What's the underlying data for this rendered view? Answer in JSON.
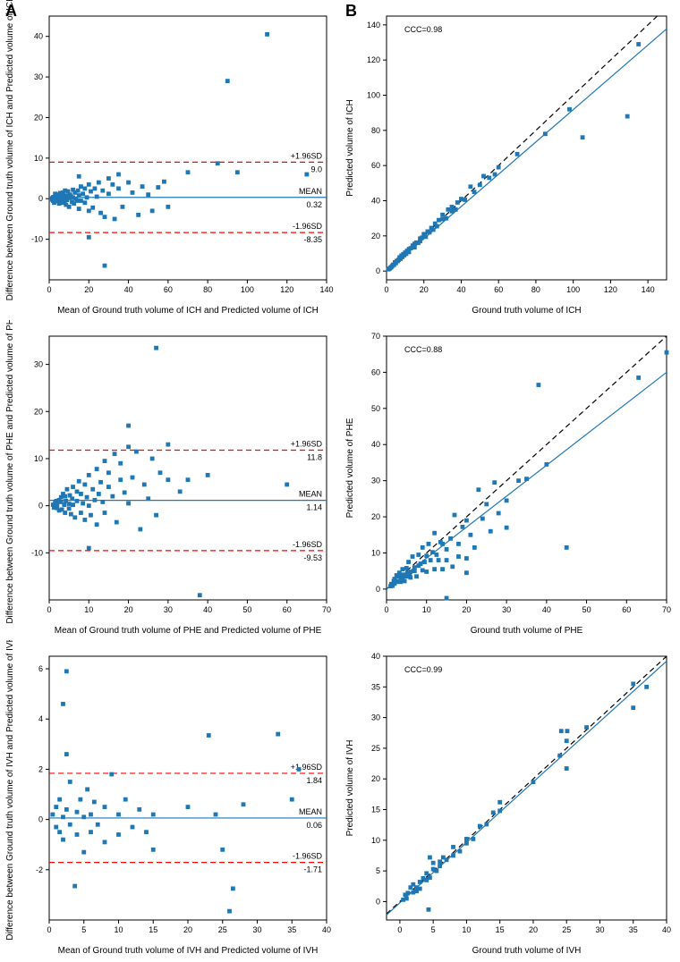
{
  "labels": {
    "A": "A",
    "B": "B"
  },
  "colors": {
    "point": "#1f77b4",
    "mean": "#1f77b4",
    "sd": "#ff0000",
    "identity": "#000000",
    "fit": "#1f77b4",
    "bg": "#ffffff"
  },
  "marker_size": 2.4,
  "ba_ich": {
    "type": "scatter",
    "xlabel": "Mean of Ground truth volume of ICH and Predicted volume of ICH",
    "ylabel": "Difference between Ground truth volume of ICH and Predicted volume of ICH",
    "xlim": [
      0,
      140
    ],
    "xtick_step": 20,
    "ylim": [
      -20,
      45
    ],
    "yticks": [
      -10,
      0,
      10,
      20,
      30,
      40
    ],
    "mean": 0.32,
    "upper_sd": 9.0,
    "lower_sd": -8.35,
    "anno_upper": "+1.96SD",
    "anno_upper_val": "9.0",
    "anno_mean": "MEAN",
    "anno_mean_val": "0.32",
    "anno_lower": "-1.96SD",
    "anno_lower_val": "-8.35",
    "points": [
      [
        1,
        -0.2
      ],
      [
        1.5,
        0.1
      ],
      [
        2,
        0.3
      ],
      [
        2,
        -0.5
      ],
      [
        2.2,
        0.4
      ],
      [
        2.5,
        -1
      ],
      [
        3,
        0.2
      ],
      [
        3,
        1.2
      ],
      [
        3.5,
        -0.6
      ],
      [
        4,
        0.5
      ],
      [
        4,
        1
      ],
      [
        4.2,
        -0.4
      ],
      [
        4.5,
        0.8
      ],
      [
        5,
        0
      ],
      [
        5,
        -1.2
      ],
      [
        5.2,
        0.9
      ],
      [
        5.5,
        1.4
      ],
      [
        5.8,
        -0.8
      ],
      [
        6,
        0.3
      ],
      [
        6.2,
        0.6
      ],
      [
        6.5,
        -0.2
      ],
      [
        7,
        1.5
      ],
      [
        7,
        -1
      ],
      [
        7.2,
        0.8
      ],
      [
        7.5,
        0.1
      ],
      [
        7.8,
        -0.5
      ],
      [
        8,
        2
      ],
      [
        8,
        0.4
      ],
      [
        8.5,
        -1.5
      ],
      [
        9,
        0.7
      ],
      [
        9,
        -0.3
      ],
      [
        9.5,
        1.8
      ],
      [
        10,
        0.2
      ],
      [
        10,
        -2
      ],
      [
        10.5,
        1
      ],
      [
        11,
        0.5
      ],
      [
        11.5,
        -0.8
      ],
      [
        12,
        2.2
      ],
      [
        12,
        0.3
      ],
      [
        12.5,
        -1.2
      ],
      [
        13,
        1.5
      ],
      [
        13.5,
        0
      ],
      [
        14,
        -0.5
      ],
      [
        14.5,
        2
      ],
      [
        15,
        0.8
      ],
      [
        15,
        -2.5
      ],
      [
        16,
        3
      ],
      [
        16,
        -0.5
      ],
      [
        17,
        1.2
      ],
      [
        18,
        -1
      ],
      [
        18,
        2.5
      ],
      [
        19,
        0.3
      ],
      [
        20,
        3.5
      ],
      [
        20,
        -3
      ],
      [
        21,
        1.8
      ],
      [
        22,
        -2.2
      ],
      [
        23,
        2.5
      ],
      [
        24,
        0.5
      ],
      [
        25,
        4
      ],
      [
        26,
        -3.5
      ],
      [
        27,
        2
      ],
      [
        28,
        -4.5
      ],
      [
        30,
        1.2
      ],
      [
        30,
        5
      ],
      [
        32,
        3.5
      ],
      [
        33,
        -5
      ],
      [
        35,
        2.5
      ],
      [
        35,
        6
      ],
      [
        37,
        -2
      ],
      [
        40,
        4
      ],
      [
        42,
        1.5
      ],
      [
        45,
        -4
      ],
      [
        47,
        3
      ],
      [
        50,
        1
      ],
      [
        52,
        -3
      ],
      [
        55,
        2.8
      ],
      [
        58,
        4.2
      ],
      [
        60,
        -2
      ],
      [
        70,
        6.5
      ],
      [
        85,
        8.7
      ],
      [
        90,
        29
      ],
      [
        95,
        6.5
      ],
      [
        110,
        40.5
      ],
      [
        130,
        6
      ],
      [
        28,
        -16.5
      ],
      [
        20,
        -9.5
      ],
      [
        15,
        5.5
      ]
    ]
  },
  "sc_ich": {
    "type": "scatter",
    "xlabel": "Ground truth volume of ICH",
    "ylabel": "Predicted volume of ICH",
    "xlim": [
      0,
      150
    ],
    "xtick_step": 20,
    "ylim": [
      -5,
      145
    ],
    "ytick_step": 20,
    "yticks": [
      0,
      20,
      40,
      60,
      80,
      100,
      120,
      140
    ],
    "ccc_label": "CCC=0.98",
    "fit_slope": 0.918,
    "fit_intercept": 0,
    "points": [
      [
        1,
        1
      ],
      [
        1.5,
        1.3
      ],
      [
        2,
        1.8
      ],
      [
        2.5,
        2.2
      ],
      [
        3,
        2.8
      ],
      [
        3.5,
        3.6
      ],
      [
        4,
        3.5
      ],
      [
        4.5,
        5
      ],
      [
        5,
        4.5
      ],
      [
        5.5,
        5.8
      ],
      [
        6,
        5.7
      ],
      [
        6.5,
        6.4
      ],
      [
        7,
        7.8
      ],
      [
        7.5,
        7
      ],
      [
        8,
        8.8
      ],
      [
        8.5,
        8
      ],
      [
        9,
        9.6
      ],
      [
        9.5,
        9
      ],
      [
        10,
        10.5
      ],
      [
        10.5,
        9.8
      ],
      [
        11,
        11.5
      ],
      [
        12,
        12.5
      ],
      [
        12,
        10.8
      ],
      [
        13,
        13
      ],
      [
        14,
        14.5
      ],
      [
        15,
        13.5
      ],
      [
        15,
        15.5
      ],
      [
        16,
        16.2
      ],
      [
        17,
        16
      ],
      [
        18,
        18.5
      ],
      [
        18,
        17
      ],
      [
        19,
        19
      ],
      [
        20,
        21
      ],
      [
        21,
        19.5
      ],
      [
        22,
        22.5
      ],
      [
        23,
        22
      ],
      [
        24,
        24.5
      ],
      [
        25,
        23.5
      ],
      [
        26,
        27
      ],
      [
        27,
        25.5
      ],
      [
        28,
        29
      ],
      [
        30,
        29.5
      ],
      [
        30,
        32
      ],
      [
        32,
        30
      ],
      [
        33,
        35
      ],
      [
        35,
        34
      ],
      [
        35,
        36.5
      ],
      [
        37,
        35
      ],
      [
        38,
        39
      ],
      [
        40,
        41
      ],
      [
        42,
        40.5
      ],
      [
        45,
        48
      ],
      [
        47,
        45
      ],
      [
        50,
        49
      ],
      [
        52,
        54
      ],
      [
        55,
        53
      ],
      [
        58,
        55
      ],
      [
        60,
        59
      ],
      [
        70,
        66.5
      ],
      [
        85,
        78
      ],
      [
        105,
        76
      ],
      [
        98,
        92
      ],
      [
        129,
        88
      ],
      [
        135,
        129
      ]
    ]
  },
  "ba_phe": {
    "type": "scatter",
    "xlabel": "Mean of Ground truth volume of PHE and Predicted volume of PHE",
    "ylabel": "Difference between Ground truth volume of PHE and Predicted volume of PHE",
    "xlim": [
      0,
      70
    ],
    "xtick_step": 10,
    "ylim": [
      -20,
      36
    ],
    "yticks": [
      -10,
      0,
      10,
      20,
      30
    ],
    "mean": 1.14,
    "upper_sd": 11.8,
    "lower_sd": -9.53,
    "anno_upper": "+1.96SD",
    "anno_upper_val": "11.8",
    "anno_mean": "MEAN",
    "anno_mean_val": "1.14",
    "anno_lower": "-1.96SD",
    "anno_lower_val": "-9.53",
    "points": [
      [
        1,
        0.2
      ],
      [
        1.2,
        -0.4
      ],
      [
        1.5,
        0.6
      ],
      [
        1.8,
        1
      ],
      [
        2,
        -0.5
      ],
      [
        2,
        0.3
      ],
      [
        2.5,
        1.2
      ],
      [
        2.5,
        -1
      ],
      [
        3,
        0.8
      ],
      [
        3,
        1.8
      ],
      [
        3.2,
        -0.8
      ],
      [
        3.5,
        2.5
      ],
      [
        3.8,
        0.2
      ],
      [
        4,
        -1.5
      ],
      [
        4,
        2
      ],
      [
        4.2,
        1
      ],
      [
        4.5,
        3.5
      ],
      [
        5,
        -0.6
      ],
      [
        5,
        0.4
      ],
      [
        5.2,
        2.2
      ],
      [
        5.5,
        -1.8
      ],
      [
        5.8,
        1.5
      ],
      [
        6,
        4
      ],
      [
        6,
        0.2
      ],
      [
        6.5,
        -2.5
      ],
      [
        7,
        3
      ],
      [
        7,
        1
      ],
      [
        7.5,
        5.2
      ],
      [
        8,
        -1.5
      ],
      [
        8,
        2.5
      ],
      [
        8.5,
        0.5
      ],
      [
        9,
        4.5
      ],
      [
        9,
        -3
      ],
      [
        9.5,
        1.8
      ],
      [
        10,
        6.5
      ],
      [
        10,
        0
      ],
      [
        10.5,
        -2
      ],
      [
        11,
        3.5
      ],
      [
        11.5,
        1.2
      ],
      [
        12,
        7.8
      ],
      [
        12,
        -4
      ],
      [
        12.5,
        2.5
      ],
      [
        13,
        5
      ],
      [
        13.5,
        0.8
      ],
      [
        14,
        9.5
      ],
      [
        14,
        -1.5
      ],
      [
        15,
        4
      ],
      [
        15,
        7
      ],
      [
        16,
        2
      ],
      [
        16.5,
        11
      ],
      [
        17,
        -3.5
      ],
      [
        18,
        5.5
      ],
      [
        18,
        9
      ],
      [
        19,
        2.8
      ],
      [
        20,
        12.5
      ],
      [
        20,
        0.5
      ],
      [
        20,
        17
      ],
      [
        21,
        6
      ],
      [
        22,
        11.5
      ],
      [
        23,
        -5
      ],
      [
        24,
        4.5
      ],
      [
        25,
        1.5
      ],
      [
        26,
        10
      ],
      [
        27,
        -2
      ],
      [
        28,
        7
      ],
      [
        30,
        13
      ],
      [
        30,
        5.5
      ],
      [
        33,
        3
      ],
      [
        35,
        5.5
      ],
      [
        38,
        -19
      ],
      [
        40,
        6.5
      ],
      [
        27,
        33.5
      ],
      [
        60,
        4.5
      ],
      [
        10,
        -9
      ]
    ]
  },
  "sc_phe": {
    "type": "scatter",
    "xlabel": "Ground truth volume of PHE",
    "ylabel": "Predicted volume of PHE",
    "xlim": [
      0,
      70
    ],
    "xtick_step": 10,
    "ylim": [
      -3,
      70
    ],
    "ytick_step": 10,
    "yticks": [
      0,
      10,
      20,
      30,
      40,
      50,
      60,
      70
    ],
    "ccc_label": "CCC=0.88",
    "fit_slope": 0.857,
    "fit_intercept": 0,
    "points": [
      [
        1,
        0.8
      ],
      [
        1.2,
        1.4
      ],
      [
        1.5,
        0.9
      ],
      [
        1.8,
        2.2
      ],
      [
        2,
        1.5
      ],
      [
        2,
        2.8
      ],
      [
        2.5,
        2
      ],
      [
        2.5,
        3.8
      ],
      [
        3,
        2.2
      ],
      [
        3,
        3.5
      ],
      [
        3.2,
        4.5
      ],
      [
        3.5,
        2
      ],
      [
        3.8,
        3.6
      ],
      [
        4,
        5.5
      ],
      [
        4,
        3
      ],
      [
        4.2,
        4
      ],
      [
        4.5,
        2.2
      ],
      [
        5,
        5.8
      ],
      [
        5,
        3.5
      ],
      [
        5.2,
        4.5
      ],
      [
        5.5,
        7.5
      ],
      [
        5.8,
        4
      ],
      [
        6,
        3.2
      ],
      [
        6,
        4.8
      ],
      [
        6.5,
        9
      ],
      [
        7,
        5
      ],
      [
        7,
        6
      ],
      [
        7.5,
        3.5
      ],
      [
        8,
        9.5
      ],
      [
        8,
        6.5
      ],
      [
        8.5,
        7
      ],
      [
        9,
        5.2
      ],
      [
        9,
        11.5
      ],
      [
        9.5,
        7.5
      ],
      [
        10,
        4.8
      ],
      [
        10,
        9.2
      ],
      [
        10.5,
        12.5
      ],
      [
        11,
        8
      ],
      [
        11.5,
        10.2
      ],
      [
        12,
        5.5
      ],
      [
        12,
        15.5
      ],
      [
        12.5,
        9.5
      ],
      [
        13,
        8
      ],
      [
        13.5,
        13
      ],
      [
        14,
        5.5
      ],
      [
        14,
        12.5
      ],
      [
        15,
        11
      ],
      [
        15,
        8
      ],
      [
        16,
        14
      ],
      [
        16.5,
        6.2
      ],
      [
        17,
        20.5
      ],
      [
        18,
        12.5
      ],
      [
        18,
        9
      ],
      [
        19,
        17.2
      ],
      [
        20,
        8.5
      ],
      [
        20,
        19
      ],
      [
        20,
        4.5
      ],
      [
        21,
        15
      ],
      [
        22,
        11.5
      ],
      [
        23,
        27.5
      ],
      [
        24,
        19.5
      ],
      [
        25,
        23.5
      ],
      [
        26,
        16
      ],
      [
        27,
        29.5
      ],
      [
        28,
        21
      ],
      [
        30,
        17
      ],
      [
        30,
        24.5
      ],
      [
        33,
        30
      ],
      [
        35,
        30.5
      ],
      [
        38,
        56.5
      ],
      [
        40,
        34.5
      ],
      [
        45,
        11.5
      ],
      [
        63,
        58.5
      ],
      [
        70,
        65.5
      ],
      [
        15,
        -2.5
      ]
    ]
  },
  "ba_ivh": {
    "type": "scatter",
    "xlabel": "Mean of Ground truth volume of IVH and Predicted volume of IVH",
    "ylabel": "Difference between Ground truth volume of IVH and Predicted volume of IVH",
    "xlim": [
      0,
      40
    ],
    "xtick_step": 5,
    "ylim": [
      -4,
      6.5
    ],
    "yticks": [
      -2,
      0,
      2,
      4,
      6
    ],
    "mean": 0.06,
    "upper_sd": 1.84,
    "lower_sd": -1.71,
    "anno_upper": "+1.96SD",
    "anno_upper_val": "1.84",
    "anno_mean": "MEAN",
    "anno_mean_val": "0.06",
    "anno_lower": "-1.96SD",
    "anno_lower_val": "-1.71",
    "points": [
      [
        0.5,
        0.2
      ],
      [
        1,
        -0.3
      ],
      [
        1,
        0.5
      ],
      [
        1.5,
        0.8
      ],
      [
        1.5,
        -0.5
      ],
      [
        2,
        0.1
      ],
      [
        2,
        -0.8
      ],
      [
        2.5,
        2.6
      ],
      [
        2.5,
        0.4
      ],
      [
        3,
        -0.2
      ],
      [
        3,
        1.5
      ],
      [
        2,
        4.6
      ],
      [
        4,
        0.3
      ],
      [
        4,
        -0.6
      ],
      [
        4.5,
        0.8
      ],
      [
        5,
        0.1
      ],
      [
        5,
        -1.3
      ],
      [
        5.5,
        1.2
      ],
      [
        6,
        0.2
      ],
      [
        6,
        -0.5
      ],
      [
        6.5,
        0.7
      ],
      [
        7,
        -0.2
      ],
      [
        2.5,
        5.9
      ],
      [
        8,
        0.5
      ],
      [
        8,
        -0.9
      ],
      [
        9,
        1.8
      ],
      [
        10,
        0.2
      ],
      [
        10,
        -0.6
      ],
      [
        11,
        0.8
      ],
      [
        12,
        -0.3
      ],
      [
        13,
        0.4
      ],
      [
        14,
        -0.5
      ],
      [
        15,
        0.2
      ],
      [
        15,
        -1.2
      ],
      [
        3.7,
        -2.65
      ],
      [
        20,
        0.5
      ],
      [
        23,
        3.35
      ],
      [
        24,
        0.2
      ],
      [
        25,
        -1.2
      ],
      [
        26,
        -3.65
      ],
      [
        26.5,
        -2.75
      ],
      [
        28,
        0.6
      ],
      [
        33,
        3.4
      ],
      [
        35,
        0.8
      ],
      [
        36,
        2
      ]
    ]
  },
  "sc_ivh": {
    "type": "scatter",
    "xlabel": "Ground truth volume of IVH",
    "ylabel": "Predicted volume of IVH",
    "xlim": [
      -2,
      40
    ],
    "xtick_step": 5,
    "xticks": [
      0,
      5,
      10,
      15,
      20,
      25,
      30,
      35,
      40
    ],
    "ylim": [
      -3,
      40
    ],
    "ytick_step": 5,
    "yticks": [
      0,
      5,
      10,
      15,
      20,
      25,
      30,
      35,
      40
    ],
    "ccc_label": "CCC=0.99",
    "fit_slope": 0.985,
    "fit_intercept": -0.2,
    "points": [
      [
        0.5,
        0.3
      ],
      [
        0.8,
        1.1
      ],
      [
        1,
        0.5
      ],
      [
        1.2,
        1.4
      ],
      [
        1.6,
        2.3
      ],
      [
        2,
        1.5
      ],
      [
        2,
        2.8
      ],
      [
        2.5,
        1.7
      ],
      [
        2.5,
        2.3
      ],
      [
        3,
        3.2
      ],
      [
        3,
        2.1
      ],
      [
        3.5,
        3.8
      ],
      [
        4,
        3.5
      ],
      [
        4,
        4.6
      ],
      [
        4.5,
        3.9
      ],
      [
        5,
        5.3
      ],
      [
        5,
        6.3
      ],
      [
        5.5,
        5
      ],
      [
        6,
        6.5
      ],
      [
        6,
        5.8
      ],
      [
        6.5,
        7.2
      ],
      [
        7,
        6.8
      ],
      [
        4.3,
        -1.3
      ],
      [
        8,
        7.5
      ],
      [
        8,
        8.9
      ],
      [
        9,
        8.2
      ],
      [
        10,
        10.2
      ],
      [
        10,
        9.5
      ],
      [
        11,
        10.2
      ],
      [
        12,
        12.3
      ],
      [
        13,
        12.6
      ],
      [
        14,
        14.5
      ],
      [
        15,
        14.8
      ],
      [
        15,
        16.2
      ],
      [
        4.5,
        7.2
      ],
      [
        20,
        19.5
      ],
      [
        25,
        21.7
      ],
      [
        24,
        23.8
      ],
      [
        25,
        26.2
      ],
      [
        24.2,
        27.8
      ],
      [
        25.1,
        27.8
      ],
      [
        28,
        28.4
      ],
      [
        35,
        31.6
      ],
      [
        35,
        35.5
      ],
      [
        37,
        35
      ]
    ]
  }
}
